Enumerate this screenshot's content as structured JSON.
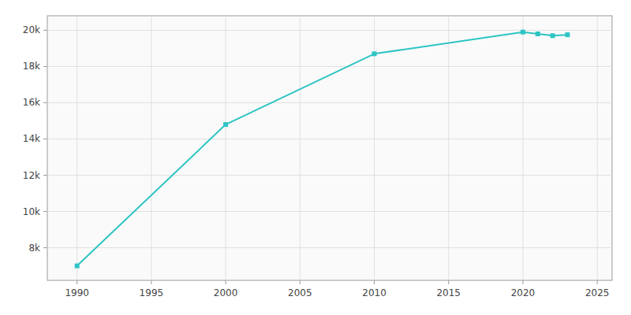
{
  "chart_data": {
    "type": "line",
    "x": [
      1990,
      2000,
      2010,
      2020,
      2021,
      2022,
      2023
    ],
    "values": [
      7000,
      14800,
      18700,
      19900,
      19800,
      19700,
      19750
    ],
    "color": "#2ec4c4",
    "marker": "square",
    "xlim": [
      1988,
      2026
    ],
    "ylim": [
      6200,
      20800
    ],
    "xticks": [
      1990,
      1995,
      2000,
      2005,
      2010,
      2015,
      2020,
      2025
    ],
    "yticks": [
      {
        "value": 8000,
        "label": "8k"
      },
      {
        "value": 10000,
        "label": "10k"
      },
      {
        "value": 12000,
        "label": "12k"
      },
      {
        "value": 14000,
        "label": "14k"
      },
      {
        "value": 16000,
        "label": "16k"
      },
      {
        "value": 18000,
        "label": "18k"
      },
      {
        "value": 20000,
        "label": "20k"
      }
    ],
    "grid": true
  }
}
